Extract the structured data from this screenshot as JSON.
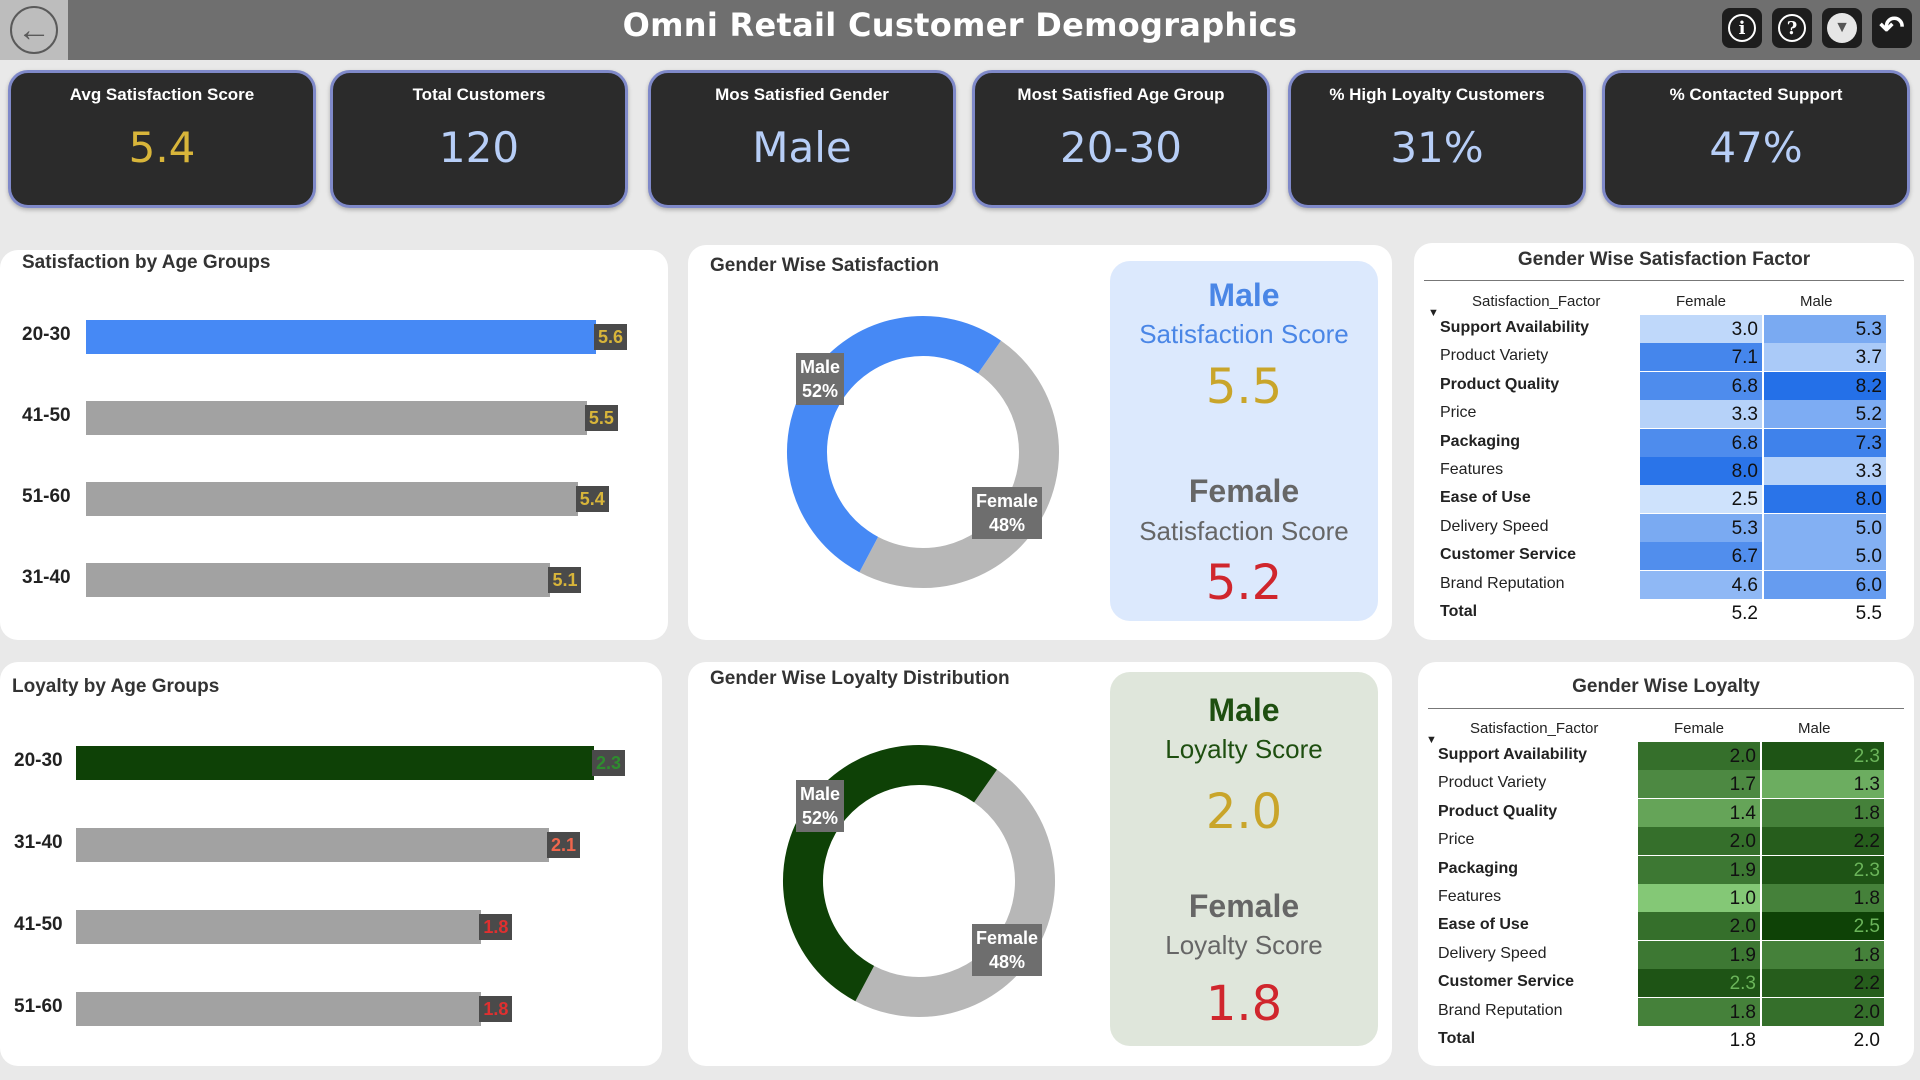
{
  "header": {
    "title": "Omni Retail Customer Demographics"
  },
  "icons": {
    "back": "back-arrow-icon",
    "info": "info-icon",
    "help": "help-icon",
    "filter": "filter-icon",
    "reset": "reset-icon"
  },
  "kpis": [
    {
      "label": "Avg Satisfaction Score",
      "value": "5.4"
    },
    {
      "label": "Total Customers",
      "value": "120"
    },
    {
      "label": "Mos Satisfied Gender",
      "value": "Male"
    },
    {
      "label": "Most Satisfied Age Group",
      "value": "20-30"
    },
    {
      "label": "% High Loyalty Customers",
      "value": "31%"
    },
    {
      "label": "% Contacted Support",
      "value": "47%"
    }
  ],
  "colors": {
    "blue_bar": "#4689f5",
    "grey_bar": "#a2a2a2",
    "dark_green": "#0e4106",
    "gold": "#c9a52a",
    "red": "#d0262d",
    "kpi_value": "#b7cef7"
  },
  "satisfaction_by_age": {
    "title": "Satisfaction by Age Groups",
    "rows": [
      {
        "category": "20-30",
        "value": 5.6,
        "label": "5.6"
      },
      {
        "category": "41-50",
        "value": 5.5,
        "label": "5.5"
      },
      {
        "category": "51-60",
        "value": 5.4,
        "label": "5.4"
      },
      {
        "category": "31-40",
        "value": 5.1,
        "label": "5.1"
      }
    ]
  },
  "loyalty_by_age": {
    "title": "Loyalty by Age Groups",
    "rows": [
      {
        "category": "20-30",
        "value": 2.3,
        "label": "2.3"
      },
      {
        "category": "31-40",
        "value": 2.1,
        "label": "2.1"
      },
      {
        "category": "41-50",
        "value": 1.8,
        "label": "1.8"
      },
      {
        "category": "51-60",
        "value": 1.8,
        "label": "1.8"
      }
    ]
  },
  "gender_satisfaction": {
    "title": "Gender Wise Satisfaction",
    "male": {
      "label": "Male",
      "pct": "52%",
      "share": 0.52
    },
    "female": {
      "label": "Female",
      "pct": "48%",
      "share": 0.48
    },
    "card": {
      "male_title": "Male",
      "male_sub": "Satisfaction Score",
      "male_value": "5.5",
      "female_title": "Female",
      "female_sub": "Satisfaction Score",
      "female_value": "5.2"
    }
  },
  "gender_loyalty": {
    "title": "Gender Wise Loyalty Distribution",
    "male": {
      "label": "Male",
      "pct": "52%",
      "share": 0.52
    },
    "female": {
      "label": "Female",
      "pct": "48%",
      "share": 0.48
    },
    "card": {
      "male_title": "Male",
      "male_sub": "Loyalty Score",
      "male_value": "2.0",
      "female_title": "Female",
      "female_sub": "Loyalty Score",
      "female_value": "1.8"
    }
  },
  "satisfaction_factor_table": {
    "title": "Gender Wise Satisfaction Factor",
    "columns": [
      "Satisfaction_Factor",
      "Female",
      "Male"
    ],
    "rows": [
      {
        "name": "Support Availability",
        "female": "3.0",
        "male": "5.3"
      },
      {
        "name": "Product Variety",
        "female": "7.1",
        "male": "3.7"
      },
      {
        "name": "Product Quality",
        "female": "6.8",
        "male": "8.2"
      },
      {
        "name": "Price",
        "female": "3.3",
        "male": "5.2"
      },
      {
        "name": "Packaging",
        "female": "6.8",
        "male": "7.3"
      },
      {
        "name": "Features",
        "female": "8.0",
        "male": "3.3"
      },
      {
        "name": "Ease of Use",
        "female": "2.5",
        "male": "8.0"
      },
      {
        "name": "Delivery Speed",
        "female": "5.3",
        "male": "5.0"
      },
      {
        "name": "Customer Service",
        "female": "6.7",
        "male": "5.0"
      },
      {
        "name": "Brand Reputation",
        "female": "4.6",
        "male": "6.0"
      }
    ],
    "total": {
      "name": "Total",
      "female": "5.2",
      "male": "5.5"
    }
  },
  "loyalty_table": {
    "title": "Gender Wise Loyalty",
    "columns": [
      "Satisfaction_Factor",
      "Female",
      "Male"
    ],
    "rows": [
      {
        "name": "Support Availability",
        "female": "2.0",
        "male": "2.3"
      },
      {
        "name": "Product Variety",
        "female": "1.7",
        "male": "1.3"
      },
      {
        "name": "Product Quality",
        "female": "1.4",
        "male": "1.8"
      },
      {
        "name": "Price",
        "female": "2.0",
        "male": "2.2"
      },
      {
        "name": "Packaging",
        "female": "1.9",
        "male": "2.3"
      },
      {
        "name": "Features",
        "female": "1.0",
        "male": "1.8"
      },
      {
        "name": "Ease of Use",
        "female": "2.0",
        "male": "2.5"
      },
      {
        "name": "Delivery Speed",
        "female": "1.9",
        "male": "1.8"
      },
      {
        "name": "Customer Service",
        "female": "2.3",
        "male": "2.2"
      },
      {
        "name": "Brand Reputation",
        "female": "1.8",
        "male": "2.0"
      }
    ],
    "total": {
      "name": "Total",
      "female": "1.8",
      "male": "2.0"
    }
  }
}
